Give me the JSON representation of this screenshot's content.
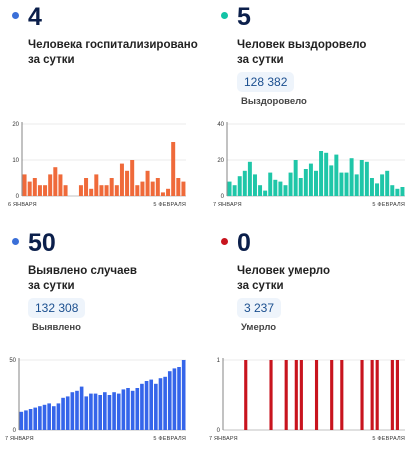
{
  "panels": [
    {
      "value": "4",
      "caption": [
        "Человека госпитализировано",
        "за сутки"
      ],
      "dot_color": "#3a6fd8"
    },
    {
      "value": "5",
      "caption": [
        "Человек выздоровело",
        "за сутки"
      ],
      "total": "128 382",
      "total_label": "Выздоровело",
      "dot_color": "#13c3a6"
    },
    {
      "value": "50",
      "caption": [
        "Выявлено случаев",
        "за сутки"
      ],
      "total": "132 308",
      "total_label": "Выявлено",
      "dot_color": "#3a6fd8"
    },
    {
      "value": "0",
      "caption": [
        "Человек умерло",
        "за сутки"
      ],
      "total": "3 237",
      "total_label": "Умерло",
      "dot_color": "#c8141e"
    }
  ],
  "chart_data": [
    {
      "type": "bar",
      "color": "#ef6a3a",
      "ylim": [
        0,
        20
      ],
      "yticks": [
        0,
        10,
        20
      ],
      "xlabels": [
        "6 ЯНВАРЯ",
        "5 ФЕВРАЛЯ"
      ],
      "values": [
        6,
        4,
        5,
        3,
        3,
        6,
        8,
        6,
        3,
        0,
        0,
        3,
        5,
        2,
        6,
        3,
        3,
        5,
        3,
        9,
        7,
        10,
        3,
        4,
        7,
        4,
        5,
        1,
        2,
        15,
        5,
        4
      ]
    },
    {
      "type": "bar",
      "color": "#1fc6a8",
      "ylim": [
        0,
        40
      ],
      "yticks": [
        0,
        20,
        40
      ],
      "xlabels": [
        "7 ЯНВАРЯ",
        "5 ФЕВРАЛЯ"
      ],
      "values": [
        8,
        6,
        11,
        14,
        19,
        12,
        6,
        3,
        13,
        9,
        8,
        6,
        13,
        20,
        10,
        15,
        18,
        14,
        25,
        24,
        17,
        23,
        13,
        13,
        21,
        12,
        20,
        19,
        10,
        7,
        12,
        14,
        6,
        4,
        5
      ]
    },
    {
      "type": "bar",
      "color": "#3565ea",
      "ylim": [
        0,
        50
      ],
      "yticks": [
        0,
        50
      ],
      "xlabels": [
        "7 ЯНВАРЯ",
        "5 ФЕВРАЛЯ"
      ],
      "values": [
        13,
        14,
        15,
        16,
        17,
        18,
        19,
        17,
        19,
        23,
        24,
        27,
        28,
        31,
        24,
        26,
        26,
        25,
        27,
        25,
        27,
        26,
        29,
        30,
        28,
        30,
        33,
        35,
        36,
        33,
        37,
        38,
        42,
        44,
        45,
        50
      ]
    },
    {
      "type": "bar",
      "color": "#c8141e",
      "ylim": [
        0,
        1
      ],
      "yticks": [
        0,
        1
      ],
      "xlabels": [
        "7 ЯНВАРЯ",
        "5 ФЕВРАЛЯ"
      ],
      "values": [
        0,
        0,
        0,
        0,
        1,
        0,
        0,
        0,
        0,
        1,
        0,
        0,
        1,
        0,
        1,
        1,
        0,
        0,
        1,
        0,
        0,
        1,
        0,
        1,
        0,
        0,
        0,
        1,
        0,
        1,
        1,
        0,
        0,
        1,
        1,
        0
      ]
    }
  ]
}
